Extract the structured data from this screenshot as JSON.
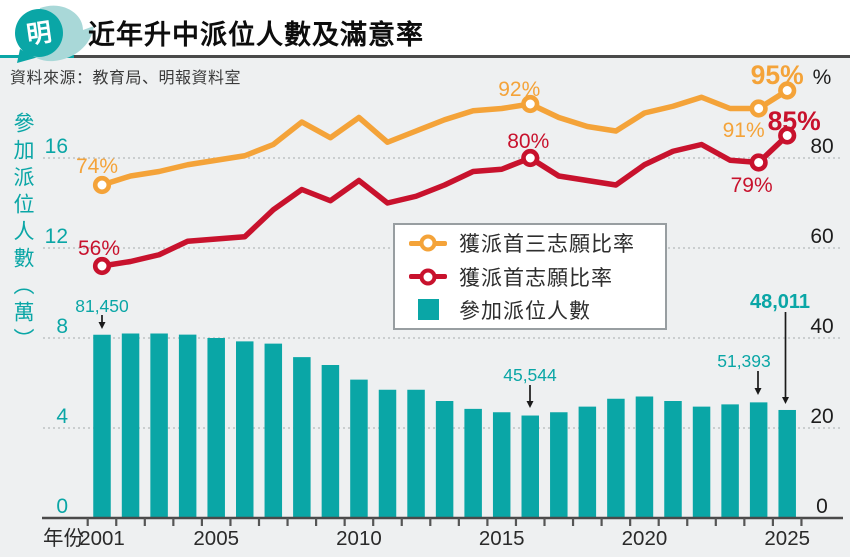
{
  "header": {
    "logo_char": "明",
    "title": "近年升中派位人數及滿意率"
  },
  "source": "資料來源：教育局、明報資料室",
  "colors": {
    "teal": "#0aa6a6",
    "teal_light": "#a9d8d8",
    "orange": "#f4a339",
    "red": "#c8122d",
    "background": "#eef0f1",
    "grid": "#b5b9bb",
    "axis": "#4a4a4a",
    "dark_text": "#222222",
    "arrow": "#1a1a1a"
  },
  "legend": {
    "items": [
      {
        "label": "獲派首三志願比率",
        "symbol": "line",
        "color": "#f4a339"
      },
      {
        "label": "獲派首志願比率",
        "symbol": "line",
        "color": "#c8122d"
      },
      {
        "label": "參加派位人數",
        "symbol": "square",
        "color": "#0aa6a6"
      }
    ]
  },
  "chart_data": {
    "type": "combo",
    "x_title": "年份",
    "x_tick_years": [
      2001,
      2005,
      2010,
      2015,
      2020,
      2025
    ],
    "x": [
      2001,
      2002,
      2003,
      2004,
      2005,
      2006,
      2007,
      2008,
      2009,
      2010,
      2011,
      2012,
      2013,
      2014,
      2015,
      2016,
      2017,
      2018,
      2019,
      2020,
      2021,
      2022,
      2023,
      2024,
      2025
    ],
    "left_axis": {
      "title": "參加派位人數（萬）",
      "unit": "萬",
      "ticks": [
        16,
        12,
        8,
        4,
        0
      ],
      "lim": [
        0,
        20
      ]
    },
    "right_axis": {
      "unit_label": "%",
      "ticks": [
        80,
        60,
        40,
        20,
        0
      ],
      "lim": [
        0,
        100
      ]
    },
    "marker_years": [
      2001,
      2016,
      2024,
      2025
    ],
    "series": [
      {
        "name": "獲派首三志願比率",
        "type": "line",
        "axis": "percent",
        "color": "#f4a339",
        "values": [
          74,
          76,
          77,
          78.5,
          79.5,
          80.5,
          83,
          88,
          84.5,
          89,
          83.5,
          86,
          88.5,
          90.5,
          91,
          92,
          89,
          87,
          86,
          90,
          91.5,
          93.5,
          91,
          91,
          95
        ]
      },
      {
        "name": "獲派首志願比率",
        "type": "line",
        "axis": "percent",
        "color": "#c8122d",
        "values": [
          56,
          57,
          58.5,
          61.5,
          62,
          62.5,
          68.5,
          73,
          70.5,
          75,
          70,
          71.5,
          74,
          77,
          77.5,
          80,
          76,
          75,
          74,
          78.5,
          81.5,
          83,
          79.5,
          79,
          85
        ]
      },
      {
        "name": "參加派位人數",
        "type": "bar",
        "axis": "wan",
        "color": "#0aa6a6",
        "values": [
          8.145,
          8.2,
          8.2,
          8.15,
          8.0,
          7.85,
          7.75,
          7.15,
          6.8,
          6.15,
          5.7,
          5.7,
          5.2,
          4.85,
          4.7,
          4.5544,
          4.7,
          4.95,
          5.3,
          5.4,
          5.2,
          4.95,
          5.05,
          5.1393,
          4.8011
        ]
      }
    ],
    "annotations": {
      "percent": [
        {
          "text": "74%",
          "series": 0,
          "year": 2001,
          "bold": false
        },
        {
          "text": "92%",
          "series": 0,
          "year": 2016,
          "bold": false
        },
        {
          "text": "91%",
          "series": 0,
          "year": 2024,
          "bold": false
        },
        {
          "text": "95%",
          "series": 0,
          "year": 2025,
          "bold": true
        },
        {
          "text": "56%",
          "series": 1,
          "year": 2001,
          "bold": false
        },
        {
          "text": "80%",
          "series": 1,
          "year": 2016,
          "bold": false
        },
        {
          "text": "79%",
          "series": 1,
          "year": 2024,
          "bold": false
        },
        {
          "text": "85%",
          "series": 1,
          "year": 2025,
          "bold": true
        }
      ],
      "bars": [
        {
          "text": "81,450",
          "year": 2001,
          "bold": false
        },
        {
          "text": "45,544",
          "year": 2016,
          "bold": false
        },
        {
          "text": "51,393",
          "year": 2024,
          "bold": false
        },
        {
          "text": "48,011",
          "year": 2025,
          "bold": true
        }
      ]
    }
  }
}
